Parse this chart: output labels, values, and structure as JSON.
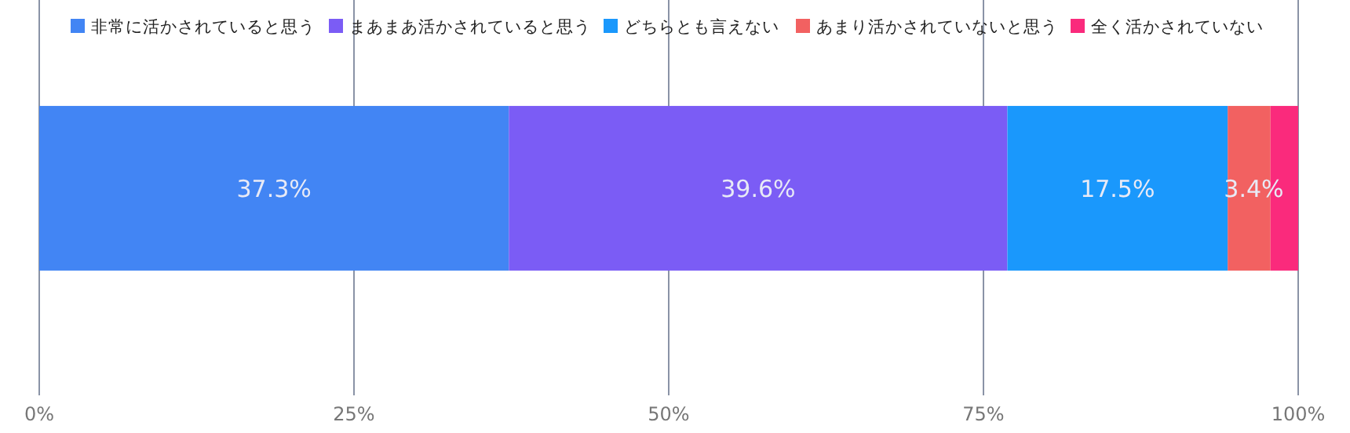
{
  "chart_data": {
    "type": "bar",
    "orientation": "horizontal",
    "stacked": true,
    "categories": [
      null
    ],
    "series": [
      {
        "name": "非常に活かされていると思う",
        "color": "#4285f4",
        "values": [
          37.3
        ],
        "value_labels": [
          "37.3%"
        ]
      },
      {
        "name": "まあまあ活かされていると思う",
        "color": "#7b5cf5",
        "values": [
          39.6
        ],
        "value_labels": [
          "39.6%"
        ]
      },
      {
        "name": "どちらとも言えない",
        "color": "#1a98fc",
        "values": [
          17.5
        ],
        "value_labels": [
          "17.5%"
        ]
      },
      {
        "name": "あまり活かされていないと思う",
        "color": "#f26161",
        "values": [
          3.4
        ],
        "value_labels": [
          "3.4%"
        ]
      },
      {
        "name": "全く活かされていない",
        "color": "#fa2a7c",
        "values": [
          2.2
        ],
        "value_labels": [
          null
        ]
      }
    ],
    "xlim": [
      0,
      100
    ],
    "xticks": [
      {
        "value": 0,
        "label": "0%"
      },
      {
        "value": 25,
        "label": "25%"
      },
      {
        "value": 50,
        "label": "50%"
      },
      {
        "value": 75,
        "label": "75%"
      },
      {
        "value": 100,
        "label": "100%"
      }
    ],
    "grid": "x",
    "legend": "top"
  }
}
